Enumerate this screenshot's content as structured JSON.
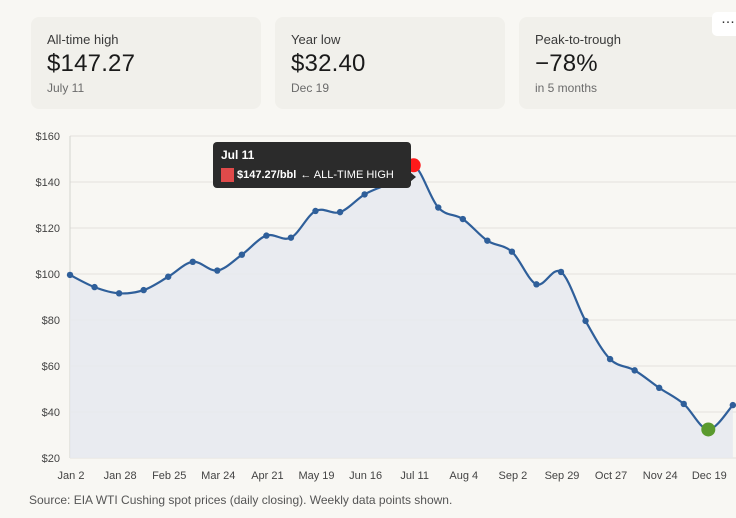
{
  "stats": [
    {
      "label": "All-time high",
      "value": "$147.27",
      "sub": "July 11"
    },
    {
      "label": "Year low",
      "value": "$32.40",
      "sub": "Dec 19"
    },
    {
      "label": "Peak-to-trough",
      "value": "−78%",
      "sub": "in 5 months"
    }
  ],
  "more_icon": "···",
  "tooltip": {
    "date": "Jul 11",
    "value": "$147.27/bbl",
    "note": "← ALL-TIME HIGH",
    "swatch_color": "#e04a4a"
  },
  "source": "Source: EIA WTI Cushing spot prices (daily closing). Weekly data points shown.",
  "chart_data": {
    "type": "line",
    "title": "",
    "xlabel": "",
    "ylabel": "",
    "ylim": [
      20,
      160
    ],
    "yticks": [
      20,
      40,
      60,
      80,
      100,
      120,
      140,
      160
    ],
    "ytick_labels": [
      "$20",
      "$40",
      "$60",
      "$80",
      "$100",
      "$120",
      "$140",
      "$160"
    ],
    "xtick_labels": [
      "Jan 2",
      "Jan 28",
      "Feb 25",
      "Mar 24",
      "Apr 21",
      "May 19",
      "Jun 16",
      "Jul 11",
      "Aug 4",
      "Sep 2",
      "Sep 29",
      "Oct 27",
      "Nov 24",
      "Dec 19"
    ],
    "grid": true,
    "line_color": "#2f5f9a",
    "fill_color": "#e6e9ef",
    "series": [
      {
        "name": "WTI spot price",
        "values": [
          99.6,
          94.3,
          91.6,
          93.0,
          98.8,
          105.3,
          101.5,
          108.4,
          116.7,
          115.8,
          127.4,
          126.9,
          134.6,
          139.6,
          147.27,
          128.9,
          123.9,
          114.5,
          109.7,
          95.5,
          100.9,
          79.6,
          63.0,
          58.1,
          50.5,
          43.5,
          32.4,
          43.0
        ]
      }
    ],
    "highlights": [
      {
        "label": "All-time high",
        "index": 14,
        "value": 147.27,
        "color": "#ff1a1a"
      },
      {
        "label": "Year low",
        "index": 26,
        "value": 32.4,
        "color": "#5a9a2e"
      }
    ]
  }
}
